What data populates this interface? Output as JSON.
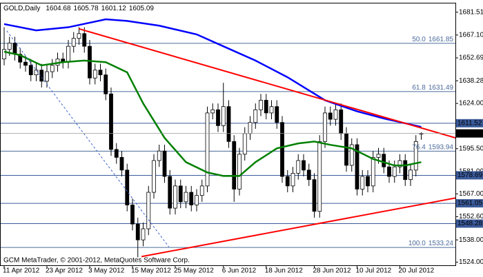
{
  "chart_data": {
    "type": "candlestick",
    "title": "GOLD,Daily",
    "footer": "GCM MetaTrader, © 2001-2012, MetaQuotes Software Corp.",
    "categories": [
      "11 Apr 2012",
      null,
      null,
      null,
      null,
      null,
      null,
      null,
      "23 Apr 2012",
      null,
      null,
      null,
      null,
      null,
      null,
      null,
      "3 May 2012",
      null,
      null,
      null,
      null,
      null,
      null,
      null,
      "15 May 2012",
      null,
      null,
      null,
      null,
      null,
      null,
      null,
      "25 May 2012",
      null,
      null,
      null,
      null,
      null,
      null,
      null,
      null,
      "6 Jun 2012",
      null,
      null,
      null,
      null,
      null,
      null,
      null,
      "18 Jun 2012",
      null,
      null,
      null,
      null,
      null,
      null,
      null,
      null,
      "28 Jun 2012",
      null,
      null,
      null,
      null,
      null,
      null,
      null,
      "10 Jul 2012",
      null,
      null,
      null,
      null,
      null,
      null,
      null,
      "20 Jul 2012",
      null,
      null,
      null,
      null
    ],
    "open": [
      1652,
      1658,
      1662,
      1655,
      1650,
      1648,
      1642,
      1645,
      1638,
      1644,
      1648,
      1652,
      1650,
      1660,
      1665,
      1668,
      1660,
      1640,
      1645,
      1642,
      1630,
      1595,
      1590,
      1582,
      1560,
      1548,
      1538,
      1545,
      1568,
      1588,
      1594,
      1578,
      1558,
      1572,
      1562,
      1568,
      1560,
      1566,
      1572,
      1618,
      1620,
      1610,
      1622,
      1600,
      1570,
      1592,
      1605,
      1612,
      1620,
      1626,
      1618,
      1622,
      1612,
      1578,
      1572,
      1580,
      1588,
      1582,
      1576,
      1556,
      1600,
      1618,
      1614,
      1620,
      1605,
      1585,
      1598,
      1570,
      1578,
      1572,
      1590,
      1592,
      1584,
      1578,
      1584,
      1588,
      1576,
      1582,
      1604.68
    ],
    "high": [
      1672,
      1666,
      1666,
      1659,
      1654,
      1652,
      1649,
      1649,
      1648,
      1652,
      1656,
      1656,
      1664,
      1669,
      1672,
      1672,
      1664,
      1649,
      1649,
      1646,
      1634,
      1599,
      1594,
      1586,
      1564,
      1552,
      1549,
      1572,
      1592,
      1598,
      1598,
      1582,
      1576,
      1576,
      1572,
      1572,
      1570,
      1576,
      1622,
      1624,
      1624,
      1637,
      1626,
      1604,
      1596,
      1609,
      1616,
      1624,
      1630,
      1630,
      1626,
      1626,
      1616,
      1582,
      1584,
      1592,
      1592,
      1586,
      1580,
      1604,
      1622,
      1622,
      1624,
      1624,
      1609,
      1602,
      1602,
      1582,
      1582,
      1594,
      1596,
      1596,
      1588,
      1588,
      1592,
      1592,
      1586,
      1604,
      1605.78
    ],
    "low": [
      1648,
      1654,
      1651,
      1646,
      1644,
      1638,
      1638,
      1634,
      1634,
      1640,
      1644,
      1646,
      1646,
      1656,
      1661,
      1656,
      1636,
      1636,
      1638,
      1626,
      1591,
      1586,
      1578,
      1556,
      1544,
      1527,
      1534,
      1541,
      1564,
      1584,
      1574,
      1554,
      1554,
      1558,
      1558,
      1556,
      1556,
      1562,
      1568,
      1614,
      1606,
      1606,
      1596,
      1562,
      1566,
      1588,
      1601,
      1608,
      1616,
      1614,
      1614,
      1608,
      1574,
      1568,
      1568,
      1576,
      1578,
      1572,
      1552,
      1552,
      1596,
      1610,
      1610,
      1601,
      1581,
      1581,
      1566,
      1566,
      1568,
      1568,
      1586,
      1580,
      1574,
      1574,
      1580,
      1572,
      1572,
      1578,
      1601.12
    ],
    "close": [
      1658,
      1662,
      1655,
      1650,
      1648,
      1642,
      1645,
      1638,
      1644,
      1648,
      1652,
      1650,
      1660,
      1665,
      1668,
      1660,
      1640,
      1645,
      1642,
      1630,
      1595,
      1590,
      1582,
      1560,
      1548,
      1538,
      1545,
      1568,
      1588,
      1594,
      1578,
      1558,
      1572,
      1562,
      1568,
      1560,
      1566,
      1572,
      1618,
      1620,
      1610,
      1622,
      1600,
      1570,
      1592,
      1605,
      1612,
      1620,
      1626,
      1618,
      1622,
      1612,
      1578,
      1572,
      1580,
      1588,
      1582,
      1576,
      1556,
      1600,
      1618,
      1614,
      1620,
      1605,
      1585,
      1598,
      1570,
      1578,
      1572,
      1590,
      1592,
      1584,
      1578,
      1584,
      1588,
      1576,
      1582,
      1600,
      1605.09
    ],
    "up_color": "#ffffff",
    "down_color": "#000000",
    "ylim": [
      1522,
      1687
    ],
    "yticks": [
      1681.51,
      {
        "value": 1667.1,
        "label": "1667.10"
      },
      1652.69,
      1638.28,
      {
        "value": 1624,
        "label": "1624.00"
      },
      {
        "value": 1595.5,
        "label": "1595.50"
      },
      1581.09,
      {
        "value": 1567,
        "label": "1567.00"
      },
      {
        "value": 1552.6,
        "label": "1552.60"
      },
      {
        "value": 1538,
        "label": "1538.00"
      },
      {
        "value": 1524,
        "label": "1524.00"
      }
    ],
    "moving_averages": [
      {
        "color": "#0000ff",
        "x": [
          0,
          6,
          12,
          19,
          23,
          29,
          36,
          41,
          47,
          53,
          60,
          66,
          71,
          78
        ],
        "values": [
          1674,
          1670,
          1672,
          1677,
          1676,
          1673,
          1667.5,
          1660,
          1651,
          1640.5,
          1626,
          1619,
          1614.5,
          1609.2
        ]
      },
      {
        "color": "#008000",
        "x": [
          0,
          3,
          7,
          11,
          15,
          19,
          23,
          26,
          30,
          34,
          38,
          41,
          44,
          47,
          51,
          55,
          58,
          61,
          65,
          69,
          73,
          75,
          78
        ],
        "values": [
          1656.6,
          1654.4,
          1648,
          1650,
          1651,
          1650,
          1643.6,
          1624,
          1602.3,
          1587,
          1580.5,
          1578.3,
          1578.3,
          1587,
          1595.7,
          1598.8,
          1600,
          1597.9,
          1595.7,
          1589,
          1584.9,
          1584.9,
          1587
        ]
      }
    ],
    "trendlines": [
      {
        "color": "#ff0000",
        "x": [
          14,
          84.4
        ],
        "y": [
          1671,
          1602.3
        ]
      },
      {
        "color": "#ff0000",
        "x": [
          25.7,
          84.4
        ],
        "y": [
          1527.5,
          1564.4
        ]
      },
      {
        "color": "#3a5fcd",
        "x": [
          0.5,
          30.8
        ],
        "y": [
          1669.7,
          1533.6
        ],
        "dashed": true
      }
    ],
    "levels": [
      1611.52,
      1578.69,
      1561.05,
      1548.28
    ],
    "level_color": "#3a5a9a",
    "fib_levels": [
      {
        "label": "50.0",
        "value": 1661.85
      },
      {
        "label": "61.8",
        "value": 1631.49
      },
      {
        "label": "76.4",
        "value": 1593.94
      },
      {
        "label": "100.0",
        "value": 1533.24
      }
    ],
    "fib_color": "#4a6a9a"
  }
}
